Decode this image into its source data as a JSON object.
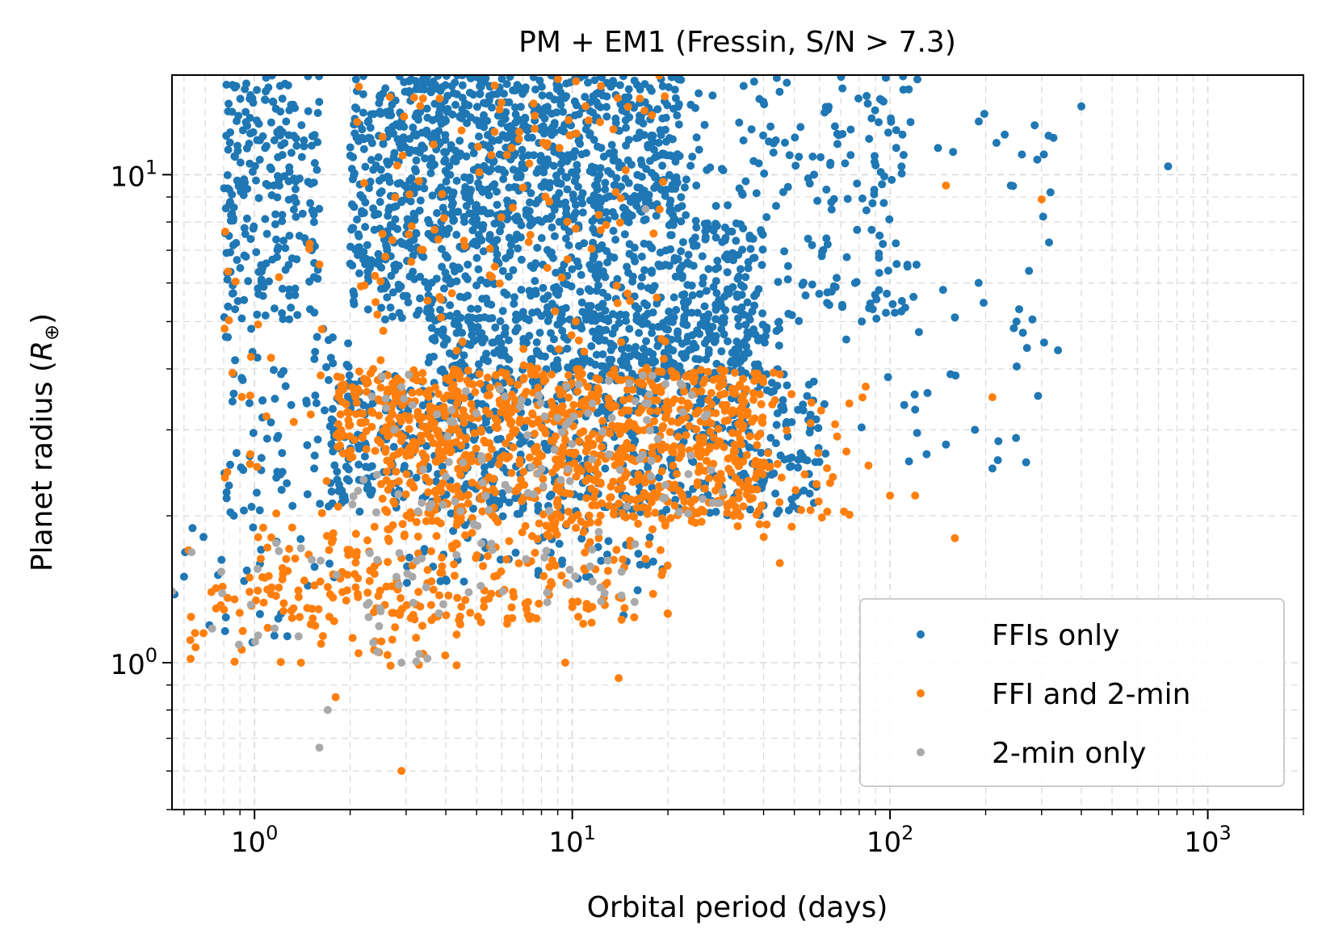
{
  "chart_data": {
    "type": "scatter",
    "title": "PM + EM1 (Fressin, S/N > 7.3)",
    "xlabel": "Orbital period (days)",
    "ylabel_main": "Planet radius (",
    "ylabel_symbol": "R",
    "ylabel_subscript": "⊕",
    "ylabel_close": ")",
    "x_scale": "log",
    "y_scale": "log",
    "xlim": [
      0.55,
      2000
    ],
    "ylim": [
      0.5,
      16
    ],
    "x_ticks": [
      {
        "value": 1,
        "base": "10",
        "exp": "0"
      },
      {
        "value": 10,
        "base": "10",
        "exp": "1"
      },
      {
        "value": 100,
        "base": "10",
        "exp": "2"
      },
      {
        "value": 1000,
        "base": "10",
        "exp": "3"
      }
    ],
    "y_ticks": [
      {
        "value": 1,
        "base": "10",
        "exp": "0"
      },
      {
        "value": 10,
        "base": "10",
        "exp": "1"
      }
    ],
    "grid": true,
    "legend_position": "bottom-right",
    "series": [
      {
        "name": "FFIs only",
        "color": "#1f77b4",
        "clusters": [
          {
            "x": [
              2.0,
              22.0
            ],
            "y": [
              8.0,
              16.0
            ],
            "n": 900
          },
          {
            "x": [
              2.0,
              40.0
            ],
            "y": [
              5.0,
              8.0
            ],
            "n": 500
          },
          {
            "x": [
              3.5,
              45.0
            ],
            "y": [
              3.9,
              5.2
            ],
            "n": 380
          },
          {
            "x": [
              1.7,
              60.0
            ],
            "y": [
              2.0,
              3.9
            ],
            "n": 650
          },
          {
            "x": [
              0.8,
              1.6
            ],
            "y": [
              5.0,
              16.0
            ],
            "n": 240
          },
          {
            "x": [
              0.8,
              2.0
            ],
            "y": [
              2.0,
              5.0
            ],
            "n": 90
          },
          {
            "x": [
              20.0,
              120.0
            ],
            "y": [
              5.0,
              16.0
            ],
            "n": 200
          },
          {
            "x": [
              60.0,
              350.0
            ],
            "y": [
              2.5,
              16.0
            ],
            "n": 60
          },
          {
            "x": [
              3.0,
              20.0
            ],
            "y": [
              1.4,
              2.2
            ],
            "n": 60
          },
          {
            "x": [
              0.6,
              1.8
            ],
            "y": [
              1.1,
              1.9
            ],
            "n": 25
          }
        ],
        "points": [
          {
            "x": 750,
            "y": 10.4
          },
          {
            "x": 400,
            "y": 13.8
          },
          {
            "x": 320,
            "y": 9.2
          },
          {
            "x": 305,
            "y": 11.0
          },
          {
            "x": 260,
            "y": 11.0
          },
          {
            "x": 240,
            "y": 9.5
          },
          {
            "x": 255,
            "y": 5.3
          },
          {
            "x": 210,
            "y": 2.5
          },
          {
            "x": 185,
            "y": 3.0
          },
          {
            "x": 150,
            "y": 2.8
          },
          {
            "x": 120,
            "y": 3.3
          },
          {
            "x": 155,
            "y": 3.9
          },
          {
            "x": 190,
            "y": 6.0
          },
          {
            "x": 160,
            "y": 5.1
          },
          {
            "x": 0.56,
            "y": 1.38
          },
          {
            "x": 0.6,
            "y": 1.5
          },
          {
            "x": 14.5,
            "y": 1.25
          }
        ]
      },
      {
        "name": "FFI and 2-min",
        "color": "#ff7f0e",
        "clusters": [
          {
            "x": [
              1.8,
              40.0
            ],
            "y": [
              2.6,
              4.0
            ],
            "n": 700
          },
          {
            "x": [
              2.5,
              40.0
            ],
            "y": [
              1.9,
              2.6
            ],
            "n": 350
          },
          {
            "x": [
              1.0,
              20.0
            ],
            "y": [
              1.2,
              1.9
            ],
            "n": 220
          },
          {
            "x": [
              0.6,
              4.5
            ],
            "y": [
              0.95,
              1.5
            ],
            "n": 70
          },
          {
            "x": [
              2.0,
              20.0
            ],
            "y": [
              4.0,
              16.0
            ],
            "n": 130
          },
          {
            "x": [
              0.8,
              2.0
            ],
            "y": [
              2.0,
              8.0
            ],
            "n": 30
          },
          {
            "x": [
              40.0,
              90.0
            ],
            "y": [
              1.8,
              4.0
            ],
            "n": 40
          }
        ],
        "points": [
          {
            "x": 300,
            "y": 8.9
          },
          {
            "x": 150,
            "y": 9.5
          },
          {
            "x": 210,
            "y": 3.5
          },
          {
            "x": 160,
            "y": 1.8
          },
          {
            "x": 120,
            "y": 2.2
          },
          {
            "x": 100,
            "y": 2.2
          },
          {
            "x": 45,
            "y": 1.6
          },
          {
            "x": 14,
            "y": 0.93
          },
          {
            "x": 9.5,
            "y": 1.0
          },
          {
            "x": 2.9,
            "y": 0.6
          },
          {
            "x": 1.8,
            "y": 0.85
          },
          {
            "x": 1.4,
            "y": 1.0
          },
          {
            "x": 0.62,
            "y": 1.7
          },
          {
            "x": 0.65,
            "y": 1.15
          }
        ]
      },
      {
        "name": "2-min only",
        "color": "#a9a9a9",
        "clusters": [
          {
            "x": [
              2.0,
              30.0
            ],
            "y": [
              2.0,
              3.9
            ],
            "n": 110
          },
          {
            "x": [
              0.6,
              4.0
            ],
            "y": [
              1.0,
              1.8
            ],
            "n": 40
          },
          {
            "x": [
              4.0,
              16.0
            ],
            "y": [
              1.3,
              2.0
            ],
            "n": 30
          }
        ],
        "points": [
          {
            "x": 1.6,
            "y": 0.67
          },
          {
            "x": 1.7,
            "y": 0.8
          },
          {
            "x": 0.55,
            "y": 1.4
          },
          {
            "x": 2.9,
            "y": 1.0
          },
          {
            "x": 3.5,
            "y": 1.02
          },
          {
            "x": 17.0,
            "y": 8.5
          }
        ]
      }
    ]
  }
}
